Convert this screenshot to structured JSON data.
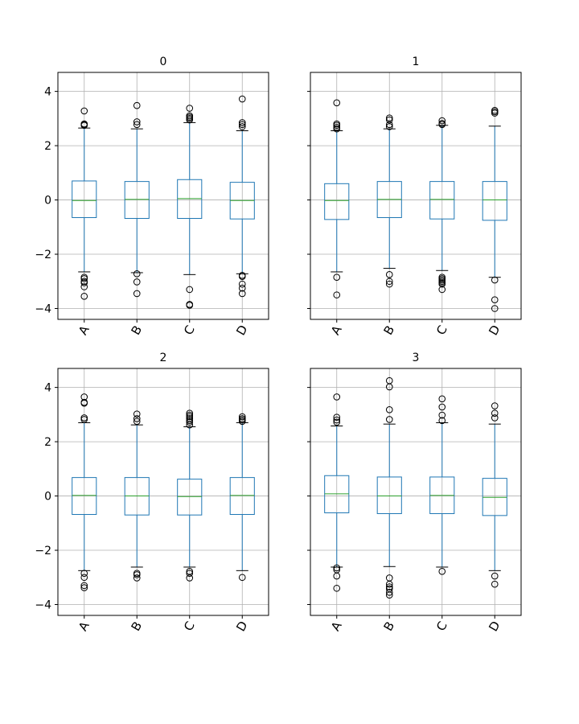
{
  "chart_data": [
    {
      "type": "box",
      "title": "0",
      "categories": [
        "A",
        "B",
        "C",
        "D"
      ],
      "ylim": [
        -4.4,
        4.7
      ],
      "yticks": [
        -4,
        -2,
        0,
        2,
        4
      ],
      "ytick_labels": [
        "−4",
        "−2",
        "0",
        "2",
        "4"
      ],
      "grid": true,
      "boxes": [
        {
          "label": "A",
          "q1": -0.65,
          "median": -0.02,
          "q3": 0.7,
          "whisker_low": -2.65,
          "whisker_high": 2.65,
          "outliers": [
            2.75,
            2.8,
            2.78,
            3.28,
            -2.85,
            -2.9,
            -3.0,
            -3.05,
            -3.2,
            -3.55
          ]
        },
        {
          "label": "B",
          "q1": -0.68,
          "median": 0.02,
          "q3": 0.68,
          "whisker_low": -2.68,
          "whisker_high": 2.62,
          "outliers": [
            2.78,
            2.88,
            3.48,
            -2.72,
            -3.02,
            -3.45
          ]
        },
        {
          "label": "C",
          "q1": -0.68,
          "median": 0.05,
          "q3": 0.75,
          "whisker_low": -2.75,
          "whisker_high": 2.85,
          "outliers": [
            2.95,
            3.0,
            3.05,
            3.1,
            3.38,
            -3.3,
            -3.85,
            -3.88
          ]
        },
        {
          "label": "D",
          "q1": -0.7,
          "median": -0.02,
          "q3": 0.65,
          "whisker_low": -2.72,
          "whisker_high": 2.55,
          "outliers": [
            2.7,
            2.78,
            2.85,
            3.72,
            -2.78,
            -2.82,
            -3.1,
            -3.25,
            -3.45
          ]
        }
      ]
    },
    {
      "type": "box",
      "title": "1",
      "categories": [
        "A",
        "B",
        "C",
        "D"
      ],
      "ylim": [
        -4.4,
        4.7
      ],
      "yticks": [
        -4,
        -2,
        0,
        2,
        4
      ],
      "ytick_labels": [
        "",
        "",
        "",
        "",
        ""
      ],
      "grid": true,
      "boxes": [
        {
          "label": "A",
          "q1": -0.72,
          "median": -0.02,
          "q3": 0.6,
          "whisker_low": -2.65,
          "whisker_high": 2.55,
          "outliers": [
            2.62,
            2.68,
            2.75,
            2.8,
            3.58,
            -2.85,
            -3.5
          ]
        },
        {
          "label": "B",
          "q1": -0.65,
          "median": 0.02,
          "q3": 0.68,
          "whisker_low": -2.52,
          "whisker_high": 2.62,
          "outliers": [
            2.7,
            2.78,
            2.95,
            3.02,
            -2.75,
            -3.0,
            -3.1
          ]
        },
        {
          "label": "C",
          "q1": -0.7,
          "median": 0.02,
          "q3": 0.68,
          "whisker_low": -2.6,
          "whisker_high": 2.75,
          "outliers": [
            2.78,
            2.82,
            2.92,
            -2.85,
            -2.9,
            -2.95,
            -3.0,
            -3.05,
            -3.1,
            -3.3
          ]
        },
        {
          "label": "D",
          "q1": -0.75,
          "median": 0.0,
          "q3": 0.68,
          "whisker_low": -2.85,
          "whisker_high": 2.72,
          "outliers": [
            3.2,
            3.25,
            3.3,
            -2.95,
            -3.68,
            -4.0
          ]
        }
      ]
    },
    {
      "type": "box",
      "title": "2",
      "categories": [
        "A",
        "B",
        "C",
        "D"
      ],
      "ylim": [
        -4.4,
        4.7
      ],
      "yticks": [
        -4,
        -2,
        0,
        2,
        4
      ],
      "ytick_labels": [
        "−4",
        "−2",
        "0",
        "2",
        "4"
      ],
      "grid": true,
      "boxes": [
        {
          "label": "A",
          "q1": -0.68,
          "median": 0.02,
          "q3": 0.68,
          "whisker_low": -2.75,
          "whisker_high": 2.7,
          "outliers": [
            2.82,
            2.88,
            3.42,
            3.45,
            3.65,
            -2.85,
            -3.0,
            -3.3,
            -3.38
          ]
        },
        {
          "label": "B",
          "q1": -0.7,
          "median": 0.0,
          "q3": 0.68,
          "whisker_low": -2.62,
          "whisker_high": 2.62,
          "outliers": [
            2.75,
            2.85,
            3.02,
            -2.85,
            -2.9,
            -3.02
          ]
        },
        {
          "label": "C",
          "q1": -0.7,
          "median": -0.02,
          "q3": 0.62,
          "whisker_low": -2.62,
          "whisker_high": 2.55,
          "outliers": [
            2.62,
            2.72,
            2.78,
            2.85,
            2.92,
            2.98,
            3.05,
            -2.78,
            -2.85,
            -3.02
          ]
        },
        {
          "label": "D",
          "q1": -0.68,
          "median": 0.02,
          "q3": 0.68,
          "whisker_low": -2.75,
          "whisker_high": 2.7,
          "outliers": [
            2.75,
            2.8,
            2.85,
            2.92,
            -3.0
          ]
        }
      ]
    },
    {
      "type": "box",
      "title": "3",
      "categories": [
        "A",
        "B",
        "C",
        "D"
      ],
      "ylim": [
        -4.4,
        4.7
      ],
      "yticks": [
        -4,
        -2,
        0,
        2,
        4
      ],
      "ytick_labels": [
        "",
        "",
        "",
        "",
        ""
      ],
      "grid": true,
      "boxes": [
        {
          "label": "A",
          "q1": -0.62,
          "median": 0.08,
          "q3": 0.75,
          "whisker_low": -2.62,
          "whisker_high": 2.58,
          "outliers": [
            2.72,
            2.8,
            2.9,
            3.65,
            -2.65,
            -2.72,
            -2.95,
            -3.4
          ]
        },
        {
          "label": "B",
          "q1": -0.65,
          "median": 0.0,
          "q3": 0.7,
          "whisker_low": -2.6,
          "whisker_high": 2.65,
          "outliers": [
            2.82,
            3.18,
            4.02,
            4.25,
            -3.02,
            -3.25,
            -3.35,
            -3.42,
            -3.55,
            -3.65
          ]
        },
        {
          "label": "C",
          "q1": -0.65,
          "median": 0.02,
          "q3": 0.7,
          "whisker_low": -2.62,
          "whisker_high": 2.7,
          "outliers": [
            2.78,
            2.98,
            3.28,
            3.58,
            -2.78
          ]
        },
        {
          "label": "D",
          "q1": -0.72,
          "median": -0.05,
          "q3": 0.65,
          "whisker_low": -2.75,
          "whisker_high": 2.65,
          "outliers": [
            2.88,
            3.05,
            3.32,
            -2.95,
            -3.25
          ]
        }
      ]
    }
  ],
  "colors": {
    "box": "#1f77b4",
    "median": "#2ca02c",
    "whisker": "#1f77b4",
    "cap": "#000000",
    "outlier": "#000000",
    "grid": "#b0b0b0",
    "axes": "#000000"
  }
}
